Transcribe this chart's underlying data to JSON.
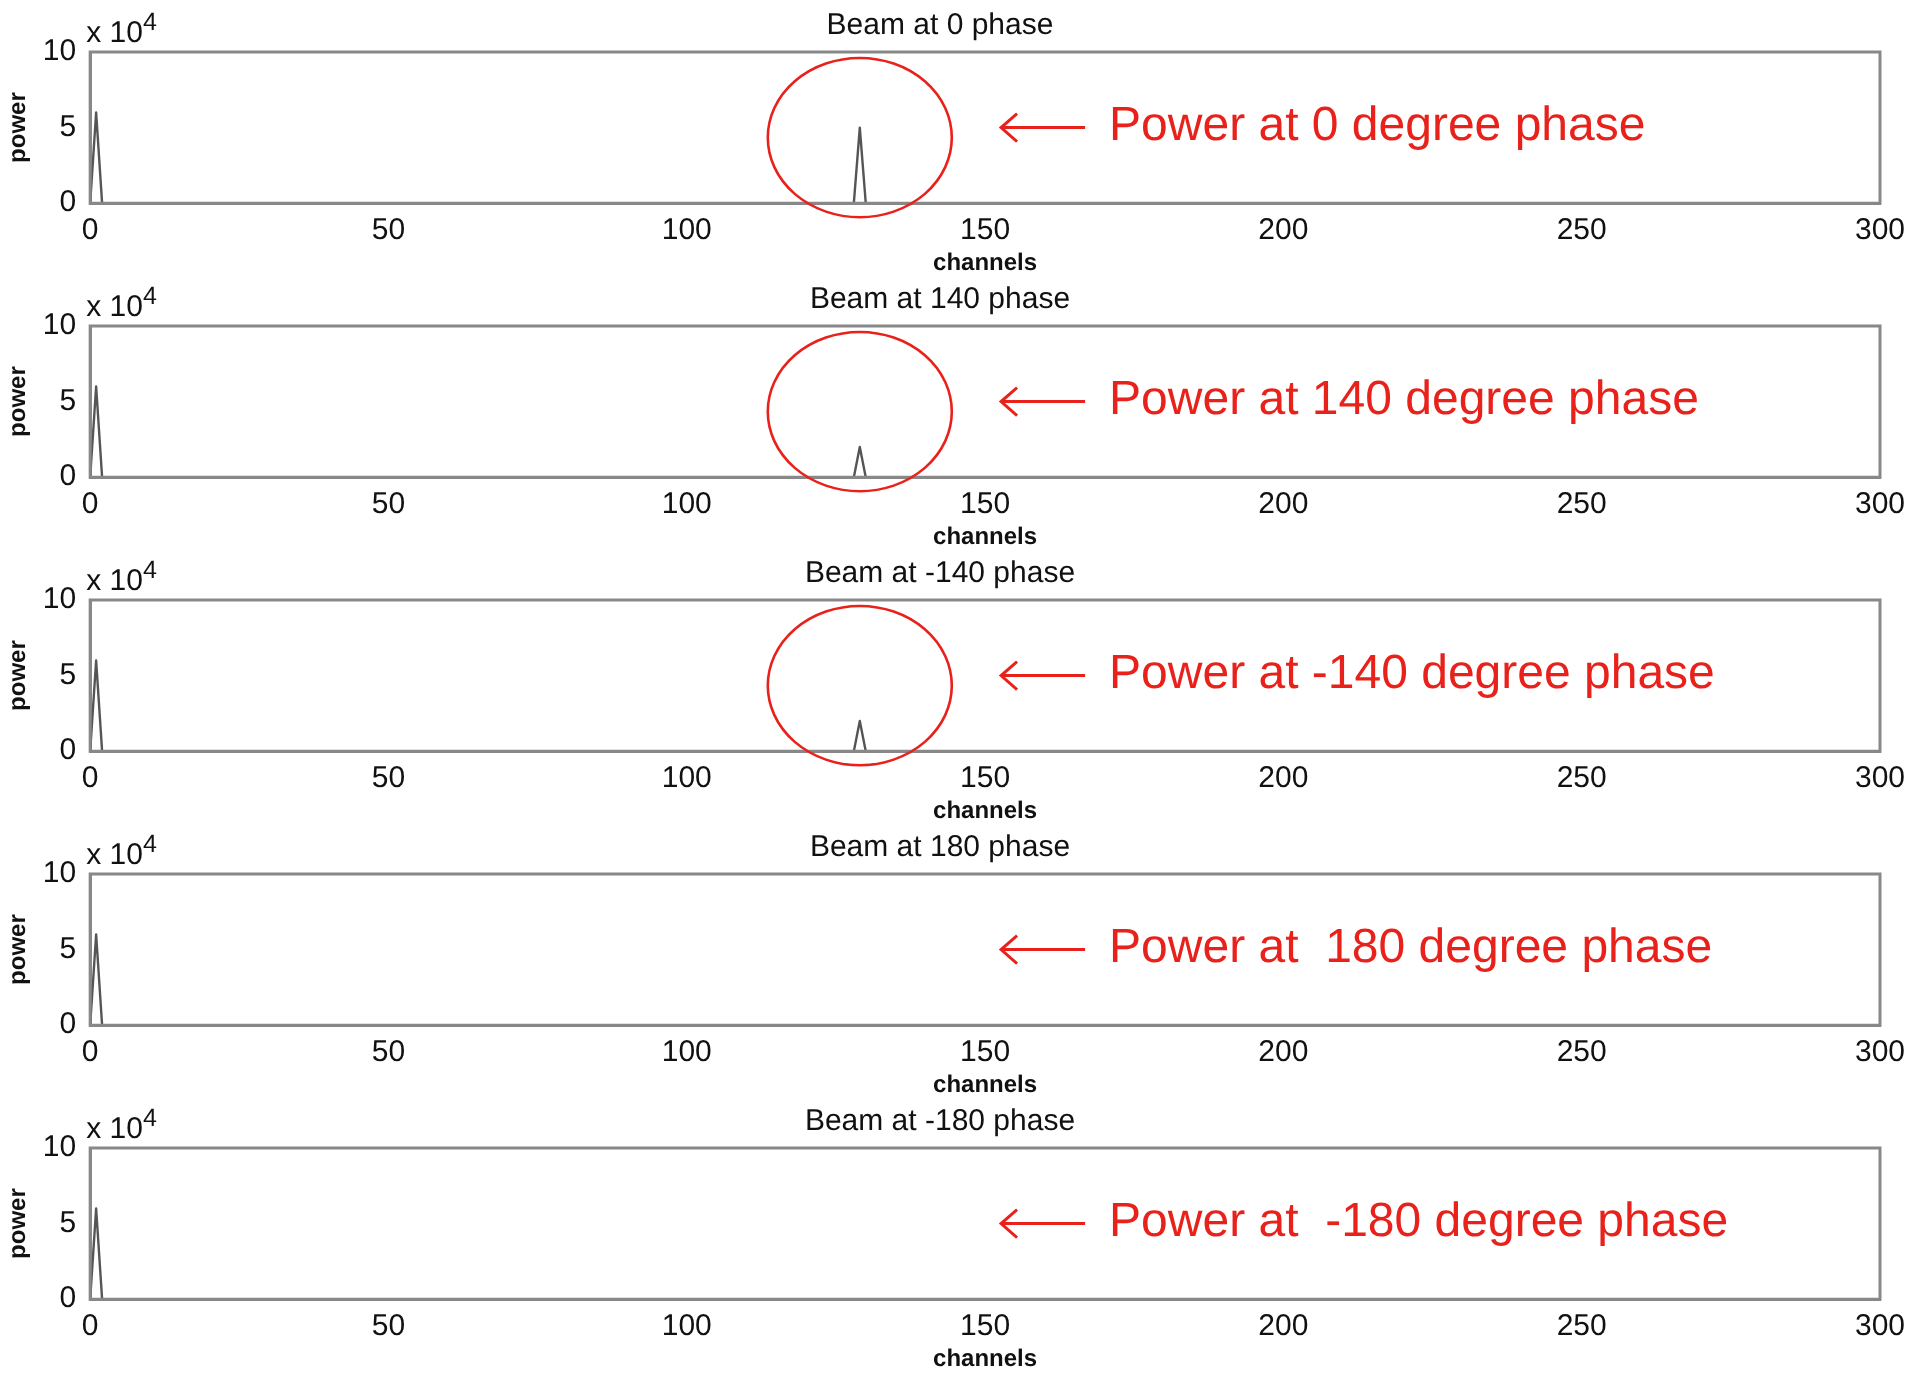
{
  "chart_data": [
    {
      "type": "line",
      "title": "Beam at 0 phase",
      "xlabel": "channels",
      "ylabel": "power",
      "x": [
        0,
        1,
        2,
        128,
        129,
        130,
        300
      ],
      "values": [
        0,
        6,
        0,
        0,
        5,
        0,
        0
      ],
      "color": "#555555",
      "xlim": [
        0,
        300
      ],
      "xticks": [
        0,
        50,
        100,
        150,
        200,
        250,
        300
      ],
      "ylim": [
        0,
        10
      ],
      "yticks": [
        0,
        5,
        10
      ],
      "grid": false,
      "legend": false,
      "annotations": [
        "x 10$^{4}$",
        "Power at 0 degree phase"
      ]
    },
    {
      "type": "line",
      "title": "Beam at 140 phase",
      "xlabel": "channels",
      "ylabel": "power",
      "x": [
        0,
        1,
        2,
        128,
        129,
        130,
        300
      ],
      "values": [
        0,
        6,
        0,
        0,
        2,
        0,
        0
      ],
      "color": "#555555",
      "xlim": [
        0,
        300
      ],
      "xticks": [
        0,
        50,
        100,
        150,
        200,
        250,
        300
      ],
      "ylim": [
        0,
        10
      ],
      "yticks": [
        0,
        5,
        10
      ],
      "grid": false,
      "legend": false,
      "annotations": [
        "x 10$^{4}$",
        "Power at 140 degree phase"
      ]
    },
    {
      "type": "line",
      "title": "Beam at -140 phase",
      "xlabel": "channels",
      "ylabel": "power",
      "x": [
        0,
        1,
        2,
        128,
        129,
        130,
        300
      ],
      "values": [
        0,
        6,
        0,
        0,
        2,
        0,
        0
      ],
      "color": "#555555",
      "xlim": [
        0,
        300
      ],
      "xticks": [
        0,
        50,
        100,
        150,
        200,
        250,
        300
      ],
      "ylim": [
        0,
        10
      ],
      "yticks": [
        0,
        5,
        10
      ],
      "grid": false,
      "legend": false,
      "annotations": [
        "x 10$^{4}$",
        "Power at -140 degree phase"
      ]
    },
    {
      "type": "line",
      "title": "Beam at 180 phase",
      "xlabel": "channels",
      "ylabel": "power",
      "x": [
        0,
        1,
        2
      ],
      "values": [
        0,
        6,
        0
      ],
      "color": "#555555",
      "xlim": [
        0,
        300
      ],
      "xticks": [
        0,
        50,
        100,
        150,
        200,
        250,
        300
      ],
      "ylim": [
        0,
        10
      ],
      "yticks": [
        0,
        5,
        10
      ],
      "grid": false,
      "legend": false,
      "annotations": [
        "x 10$^{4}$",
        "Power at  180 degree phase"
      ]
    },
    {
      "type": "line",
      "title": "Beam at -180 phase",
      "xlabel": "channels",
      "ylabel": "power",
      "x": [
        0,
        1,
        2
      ],
      "values": [
        0,
        6,
        0
      ],
      "color": "#555555",
      "xlim": [
        0,
        300
      ],
      "xticks": [
        0,
        50,
        100,
        150,
        200,
        250,
        300
      ],
      "ylim": [
        0,
        10
      ],
      "yticks": [
        0,
        5,
        10
      ],
      "grid": false,
      "legend": false,
      "annotations": [
        "x 10$^{4}$",
        "Power at  -180 degree phase"
      ]
    }
  ]
}
